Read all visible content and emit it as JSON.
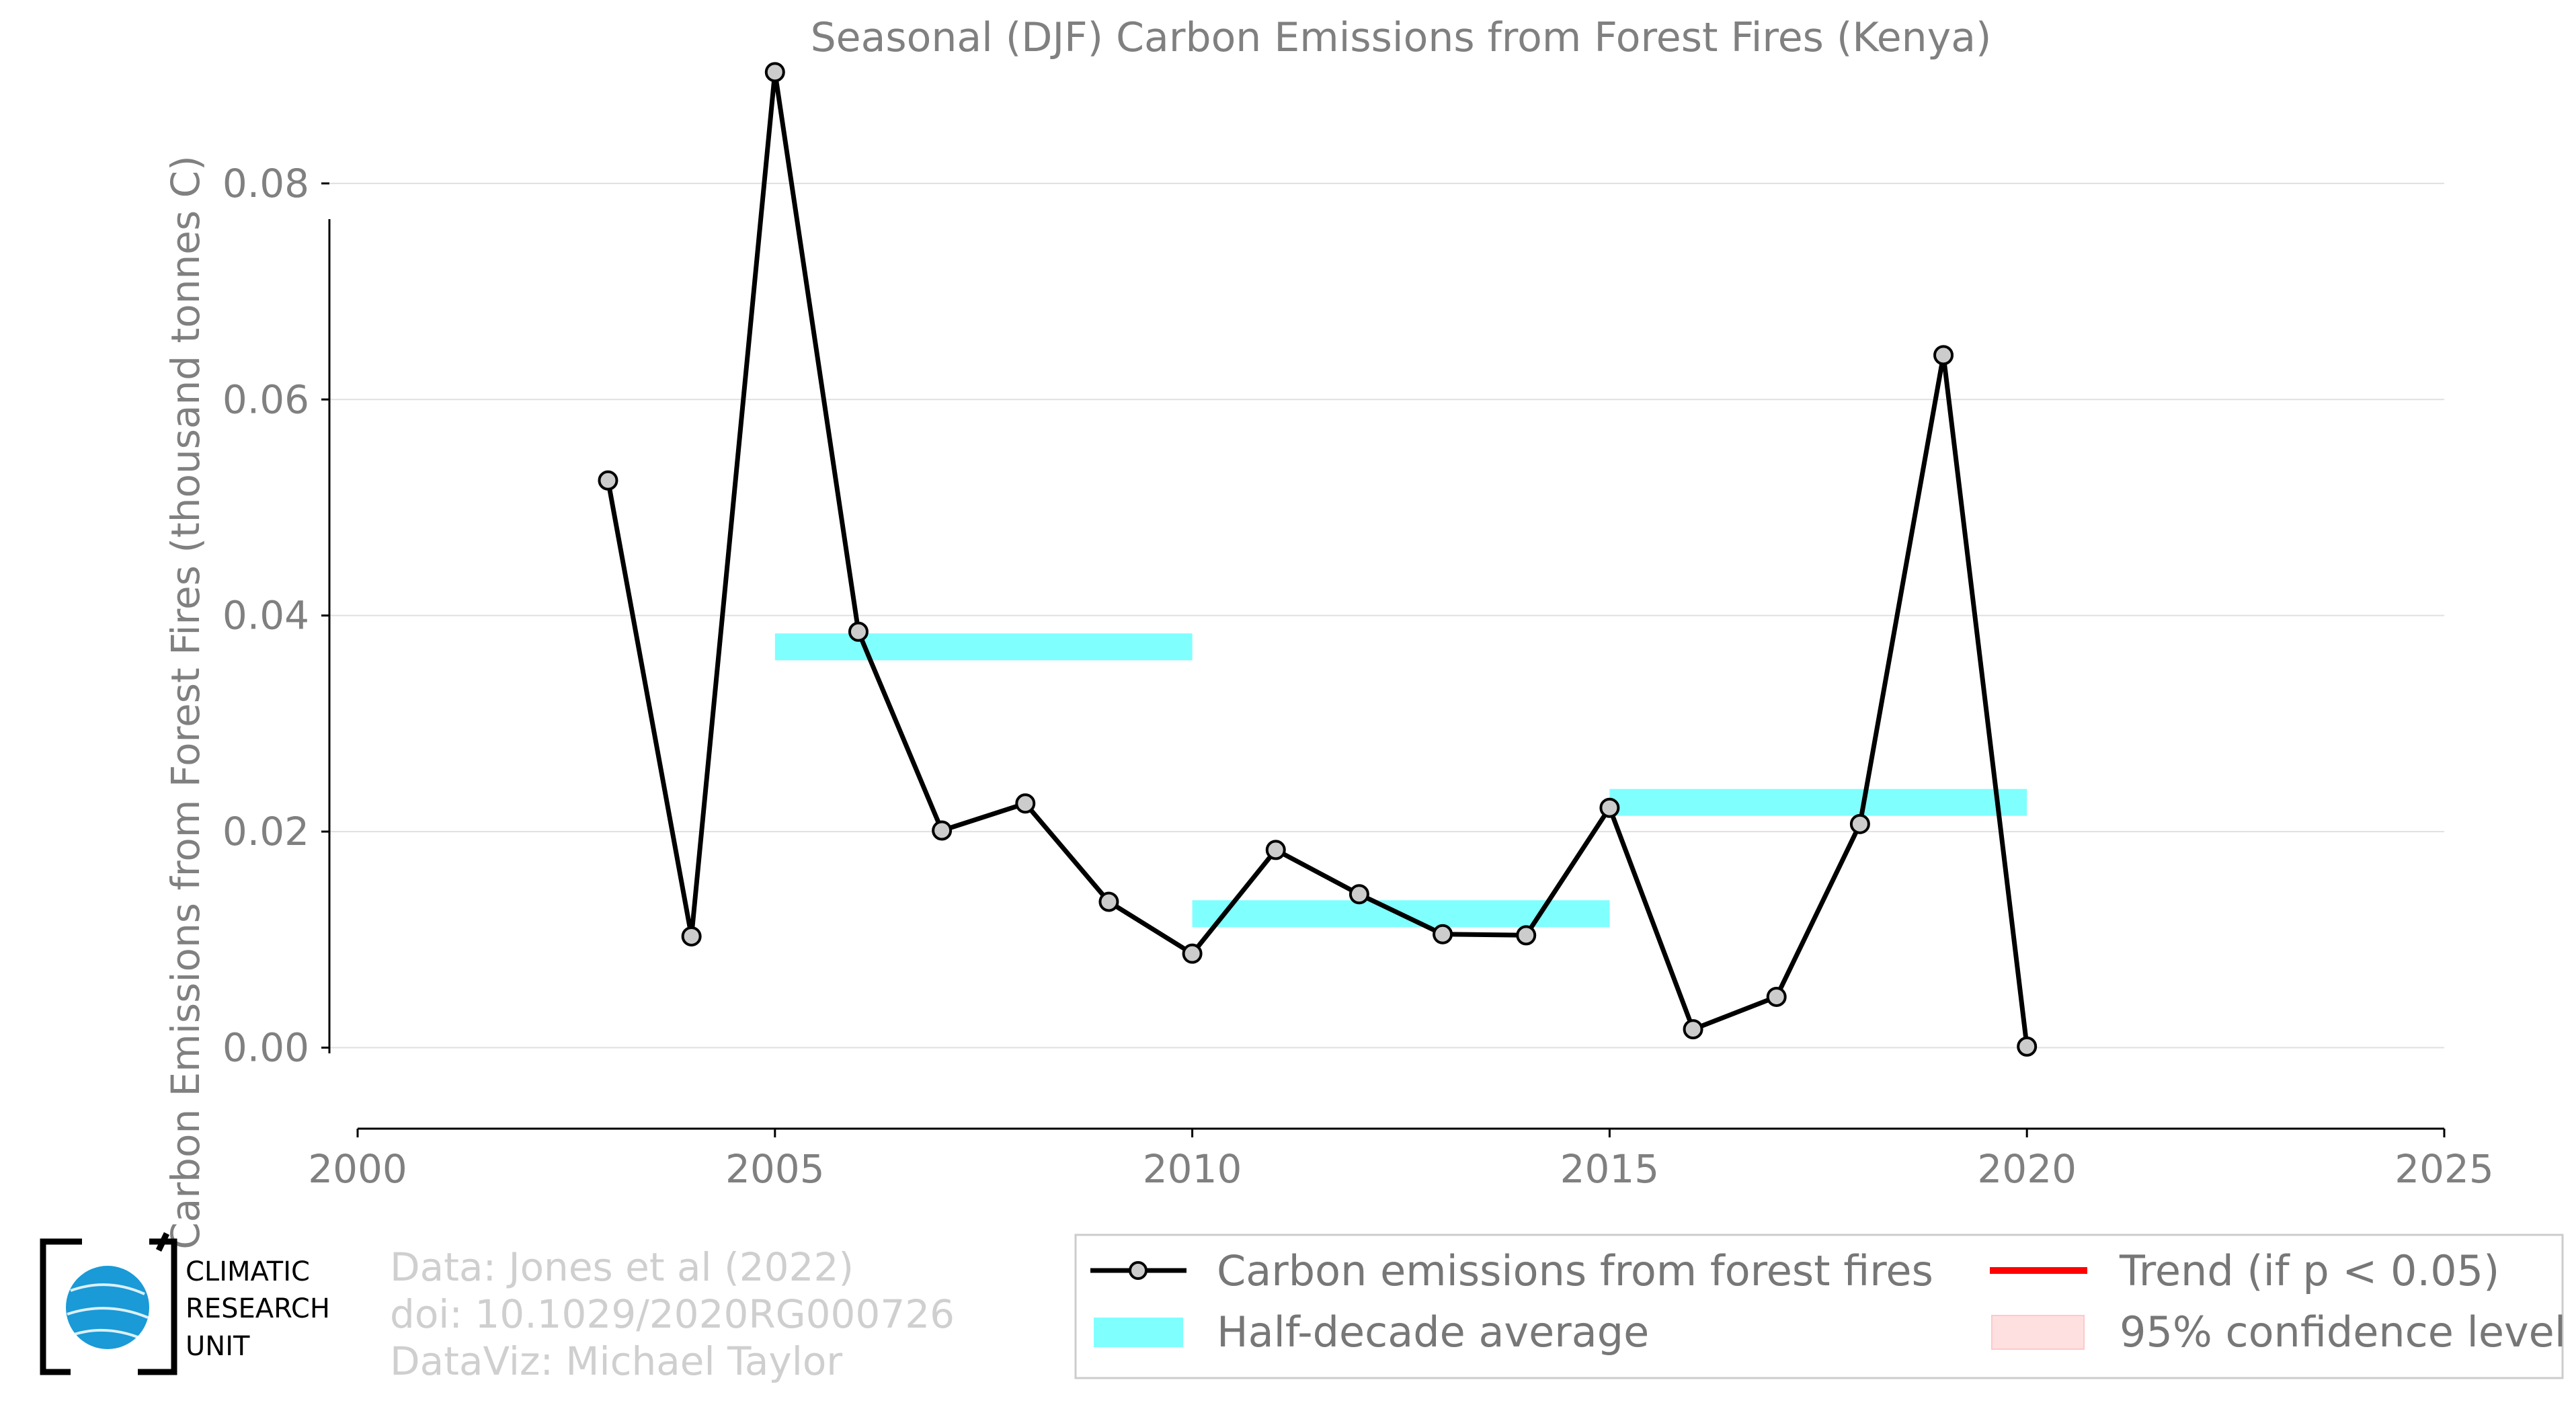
{
  "chart_data": {
    "type": "line",
    "title": "Seasonal (DJF) Carbon Emissions from Forest Fires (Kenya)",
    "xlabel": "",
    "ylabel": "Carbon Emissions from Forest Fires (thousand tonnes C)",
    "xlim": [
      2000,
      2025
    ],
    "ylim": [
      -0.0075,
      0.092
    ],
    "xticks": [
      "2000",
      "2005",
      "2010",
      "2015",
      "2020",
      "2025"
    ],
    "yticks": [
      "0.00",
      "0.02",
      "0.04",
      "0.06",
      "0.08"
    ],
    "grid": "horizontal",
    "legend_position": "bottom-right",
    "series": [
      {
        "name": "Carbon emissions from forest fires",
        "color": "#000000",
        "marker_fill": "#cccccc",
        "x": [
          2003,
          2004,
          2005,
          2006,
          2007,
          2008,
          2009,
          2010,
          2011,
          2012,
          2013,
          2014,
          2015,
          2016,
          2017,
          2018,
          2019,
          2020
        ],
        "values": [
          0.0525,
          0.0103,
          0.0903,
          0.0385,
          0.0201,
          0.0226,
          0.0135,
          0.0087,
          0.0183,
          0.0142,
          0.0105,
          0.0104,
          0.0222,
          0.0017,
          0.0047,
          0.0207,
          0.0641,
          0.0001
        ]
      }
    ],
    "half_decade_average": {
      "name": "Half-decade average",
      "color": "#80ffff",
      "segments": [
        {
          "x_start": 2005,
          "x_end": 2010,
          "value": 0.0371
        },
        {
          "x_start": 2010,
          "x_end": 2015,
          "value": 0.0124
        },
        {
          "x_start": 2015,
          "x_end": 2020,
          "value": 0.0227
        }
      ]
    },
    "legend": [
      {
        "label": "Carbon emissions from forest fires",
        "kind": "line-marker",
        "color": "#000000"
      },
      {
        "label": "Trend (if p < 0.05)",
        "kind": "line",
        "color": "#ff0000"
      },
      {
        "label": "Half-decade average",
        "kind": "band",
        "color": "#80ffff"
      },
      {
        "label": "95% confidence level",
        "kind": "patch",
        "color": "#ffe0e0"
      }
    ]
  },
  "logo": {
    "lines": [
      "CLIMATIC",
      "RESEARCH",
      "UNIT"
    ],
    "globe_color": "#1a9ad6"
  },
  "credits": {
    "line1": "Data: Jones et al (2022)",
    "line2": "doi: 10.1029/2020RG000726",
    "line3": "DataViz: Michael Taylor"
  }
}
